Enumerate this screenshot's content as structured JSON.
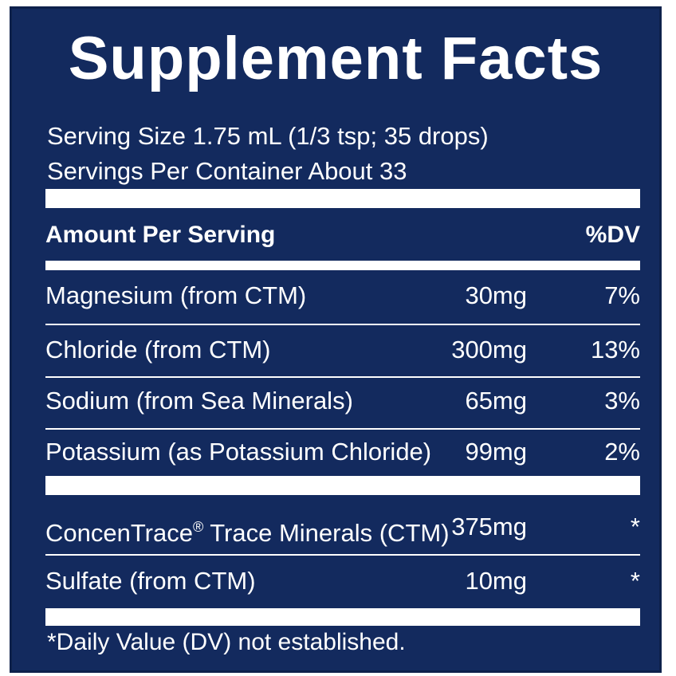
{
  "title": "Supplement Facts",
  "serving_size": "Serving Size 1.75 mL (1/3 tsp; 35 drops)",
  "servings_per_container": "Servings Per Container About 33",
  "header": {
    "amount_label": "Amount Per Serving",
    "dv_label": "%DV"
  },
  "nutrients": [
    {
      "name": "Magnesium (from CTM)",
      "amount": "30mg",
      "dv": "7%"
    },
    {
      "name": "Chloride (from CTM)",
      "amount": "300mg",
      "dv": "13%"
    },
    {
      "name": "Sodium (from Sea Minerals)",
      "amount": "65mg",
      "dv": "3%"
    },
    {
      "name": "Potassium (as Potassium Chloride)",
      "amount": "99mg",
      "dv": "2%"
    }
  ],
  "other": [
    {
      "name": "ConcenTrace",
      "name_mark": "®",
      "name_suffix": " Trace Minerals (CTM)",
      "amount": "375mg",
      "dv": "*"
    },
    {
      "name": "Sulfate (from CTM)",
      "amount": "10mg",
      "dv": "*"
    }
  ],
  "footnote": "*Daily Value (DV) not established.",
  "colors": {
    "panel_background": "#132a5e",
    "text": "#ffffff"
  }
}
